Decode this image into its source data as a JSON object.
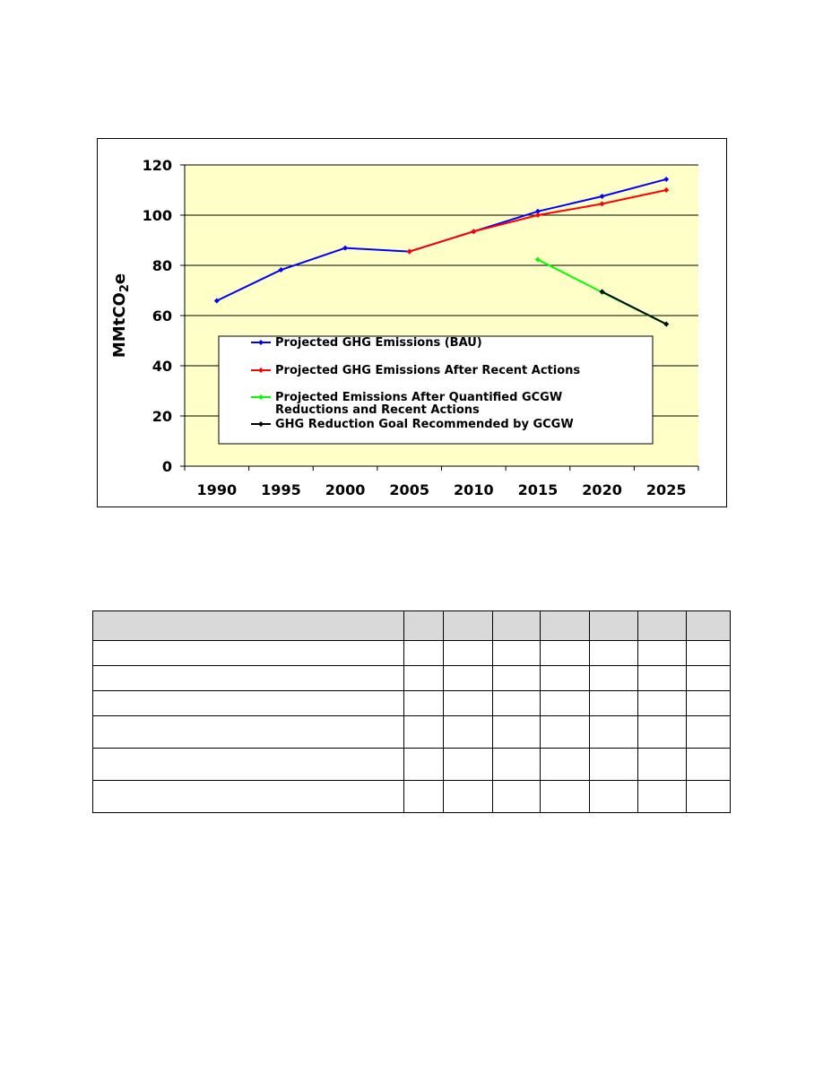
{
  "chart_data": {
    "type": "line",
    "ylabel": "MMtCO2e",
    "ylim": [
      0,
      120
    ],
    "yticks": [
      0,
      20,
      40,
      60,
      80,
      100,
      120
    ],
    "xticks": [
      1990,
      1995,
      2000,
      2005,
      2010,
      2015,
      2020,
      2025
    ],
    "grid": "horizontal",
    "legend_position": "inside-lower-center",
    "plot_background": "#ffffc8",
    "series": [
      {
        "name": "Projected GHG Emissions (BAU)",
        "color": "#0000ff",
        "points": [
          [
            1990,
            65.9
          ],
          [
            1995,
            78.2
          ],
          [
            2000,
            86.9
          ],
          [
            2005,
            85.5
          ],
          [
            2010,
            93.5
          ],
          [
            2015,
            101.5
          ],
          [
            2020,
            107.5
          ],
          [
            2025,
            114.3
          ]
        ]
      },
      {
        "name": "Projected GHG Emissions After Recent Actions",
        "color": "#ff0000",
        "points": [
          [
            2005,
            85.5
          ],
          [
            2010,
            93.5
          ],
          [
            2015,
            100.0
          ],
          [
            2020,
            104.5
          ],
          [
            2025,
            110.0
          ]
        ]
      },
      {
        "name": "Projected Emissions After Quantified GCGW\nReductions and Recent Actions",
        "color": "#00ff00",
        "points": [
          [
            2015,
            82.3
          ],
          [
            2020,
            69.3
          ],
          [
            2025,
            56.5
          ]
        ]
      },
      {
        "name": "GHG Reduction Goal Recommended by GCGW",
        "color": "#000000",
        "points": [
          [
            2020,
            69.5
          ],
          [
            2025,
            56.6
          ]
        ]
      }
    ]
  },
  "table": {
    "header_color": "#d9d9d9",
    "column_count": 8,
    "row_count": 6
  }
}
